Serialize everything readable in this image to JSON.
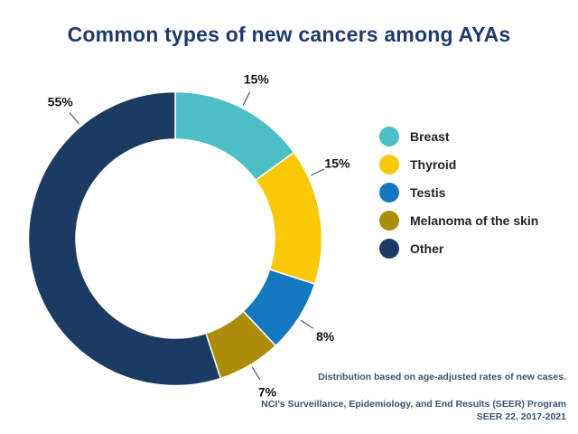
{
  "title": "Common types of new cancers among AYAs",
  "chart_data": {
    "type": "pie",
    "subtype": "donut",
    "title": "Common types of new cancers among AYAs",
    "categories": [
      "Breast",
      "Thyroid",
      "Testis",
      "Melanoma of the skin",
      "Other"
    ],
    "values": [
      15,
      15,
      8,
      7,
      55
    ],
    "labels": [
      "15%",
      "15%",
      "8%",
      "7%",
      "55%"
    ],
    "colors": [
      "#4CBEC4",
      "#F9C908",
      "#1478BF",
      "#AD8B0B",
      "#1C3B63"
    ],
    "unit": "percent",
    "start_angle_deg": 0,
    "direction": "clockwise",
    "label_angles_deg": [
      27,
      65,
      123,
      149,
      320
    ],
    "legend_position": "right"
  },
  "footnotes": {
    "note": "Distribution based on age-adjusted rates of new cases.",
    "source_line1": "NCI’s Surveillance, Epidemiology, and End Results (SEER) Program",
    "source_line2": "SEER 22, 2017-2021"
  },
  "colors": {
    "title": "#1E3A6D",
    "label": "#141414",
    "legend": "#232323",
    "footnote": "#3A5377",
    "leader": "#1C3B63",
    "background": "#FFFFFF"
  }
}
